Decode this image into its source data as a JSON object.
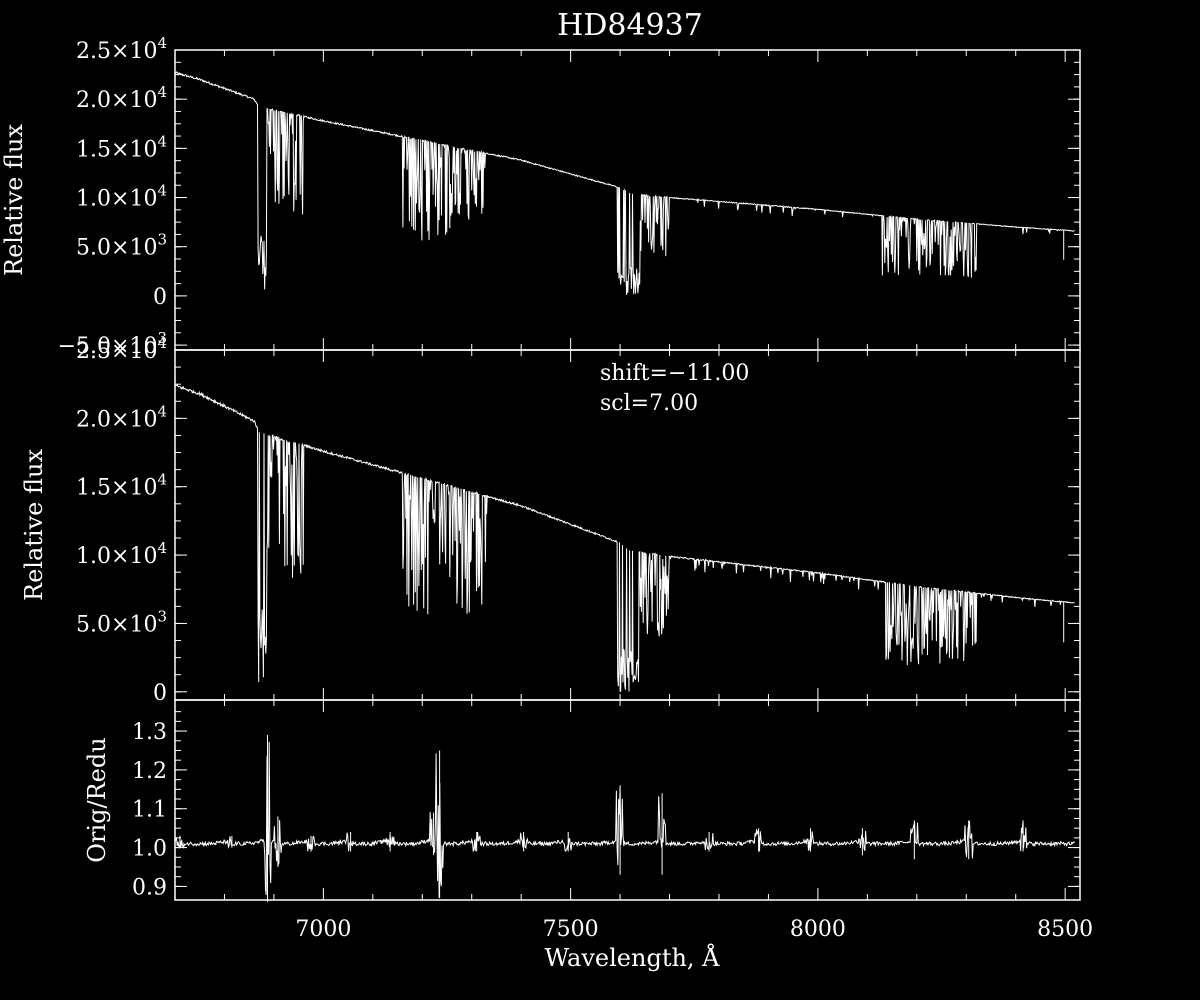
{
  "colors": {
    "background": "#000000",
    "foreground": "#ffffff"
  },
  "chart_data": [
    {
      "type": "line",
      "panel": "top",
      "title": "HD84937",
      "ylabel": "Relative flux",
      "xlim": [
        6700,
        8530
      ],
      "ylim": [
        -5500,
        25000
      ],
      "yticks": [
        {
          "value": 25000,
          "mant": "2.5",
          "exp": "4"
        },
        {
          "value": 20000,
          "mant": "2.0",
          "exp": "4"
        },
        {
          "value": 15000,
          "mant": "1.5",
          "exp": "4"
        },
        {
          "value": 10000,
          "mant": "1.0",
          "exp": "4"
        },
        {
          "value": 5000,
          "mant": "5.0",
          "exp": "3"
        },
        {
          "value": 0,
          "mant": "0",
          "exp": ""
        },
        {
          "value": -5000,
          "mant": "−5.0",
          "exp": "3"
        }
      ],
      "continuum": [
        [
          6700,
          22700
        ],
        [
          6750,
          22000
        ],
        [
          6860,
          20000
        ],
        [
          6870,
          19200
        ],
        [
          7000,
          17800
        ],
        [
          7200,
          15800
        ],
        [
          7400,
          13800
        ],
        [
          7600,
          11000
        ],
        [
          7620,
          10400
        ],
        [
          7700,
          10000
        ],
        [
          8000,
          8800
        ],
        [
          8200,
          7800
        ],
        [
          8400,
          7000
        ],
        [
          8520,
          6600
        ]
      ],
      "absorption_bands": [
        {
          "from": 6867,
          "to": 6885,
          "depth": 0.97
        },
        {
          "from": 6885,
          "to": 6960,
          "depth": 0.55
        },
        {
          "from": 7160,
          "to": 7330,
          "depth": 0.65
        },
        {
          "from": 7595,
          "to": 7640,
          "depth": 1.0
        },
        {
          "from": 7640,
          "to": 7700,
          "depth": 0.6
        },
        {
          "from": 8130,
          "to": 8320,
          "depth": 0.75
        }
      ]
    },
    {
      "type": "line",
      "panel": "middle",
      "ylabel": "Relative flux",
      "xlim": [
        6700,
        8530
      ],
      "ylim": [
        -600,
        25000
      ],
      "yticks": [
        {
          "value": 25000,
          "mant": "2.5",
          "exp": "4"
        },
        {
          "value": 20000,
          "mant": "2.0",
          "exp": "4"
        },
        {
          "value": 15000,
          "mant": "1.5",
          "exp": "4"
        },
        {
          "value": 10000,
          "mant": "1.0",
          "exp": "4"
        },
        {
          "value": 5000,
          "mant": "5.0",
          "exp": "3"
        },
        {
          "value": 0,
          "mant": "0",
          "exp": ""
        }
      ],
      "annotations": [
        "shift=−11.00",
        "scl=7.00"
      ],
      "continuum": [
        [
          6700,
          22400
        ],
        [
          6750,
          21800
        ],
        [
          6860,
          19800
        ],
        [
          6870,
          19000
        ],
        [
          7000,
          17600
        ],
        [
          7200,
          15600
        ],
        [
          7400,
          13600
        ],
        [
          7600,
          10900
        ],
        [
          7620,
          10300
        ],
        [
          7700,
          9900
        ],
        [
          8000,
          8700
        ],
        [
          8200,
          7700
        ],
        [
          8400,
          6900
        ],
        [
          8520,
          6500
        ]
      ],
      "absorption_bands": [
        {
          "from": 6867,
          "to": 6885,
          "depth": 0.97
        },
        {
          "from": 6885,
          "to": 6960,
          "depth": 0.55
        },
        {
          "from": 7160,
          "to": 7330,
          "depth": 0.65
        },
        {
          "from": 7595,
          "to": 7640,
          "depth": 1.0
        },
        {
          "from": 7640,
          "to": 7700,
          "depth": 0.6
        },
        {
          "from": 8130,
          "to": 8320,
          "depth": 0.75
        }
      ]
    },
    {
      "type": "line",
      "panel": "bottom",
      "ylabel": "Orig/Redu",
      "xlabel": "Wavelength, Å",
      "xlim": [
        6700,
        8530
      ],
      "ylim": [
        0.865,
        1.38
      ],
      "xticks": [
        {
          "value": 7000,
          "label": "7000"
        },
        {
          "value": 7500,
          "label": "7500"
        },
        {
          "value": 8000,
          "label": "8000"
        },
        {
          "value": 8500,
          "label": "8500"
        }
      ],
      "yticks": [
        {
          "value": 1.3,
          "label": "1.3"
        },
        {
          "value": 1.2,
          "label": "1.2"
        },
        {
          "value": 1.1,
          "label": "1.1"
        },
        {
          "value": 1.0,
          "label": "1.0"
        },
        {
          "value": 0.9,
          "label": "0.9"
        }
      ],
      "baseline": 1.01,
      "spikes": [
        {
          "x": 6710,
          "max": 1.03,
          "min": 1.0
        },
        {
          "x": 6815,
          "max": 1.03,
          "min": 1.0
        },
        {
          "x": 6887,
          "max": 1.29,
          "min": 0.86
        },
        {
          "x": 6908,
          "max": 1.08,
          "min": 0.95
        },
        {
          "x": 6975,
          "max": 1.03,
          "min": 0.99
        },
        {
          "x": 7055,
          "max": 1.04,
          "min": 0.99
        },
        {
          "x": 7135,
          "max": 1.04,
          "min": 0.99
        },
        {
          "x": 7223,
          "max": 1.09,
          "min": 0.98
        },
        {
          "x": 7235,
          "max": 1.25,
          "min": 0.87
        },
        {
          "x": 7310,
          "max": 1.04,
          "min": 0.99
        },
        {
          "x": 7405,
          "max": 1.04,
          "min": 0.99
        },
        {
          "x": 7495,
          "max": 1.04,
          "min": 0.99
        },
        {
          "x": 7600,
          "max": 1.16,
          "min": 0.93
        },
        {
          "x": 7685,
          "max": 1.14,
          "min": 0.93
        },
        {
          "x": 7780,
          "max": 1.04,
          "min": 0.99
        },
        {
          "x": 7880,
          "max": 1.05,
          "min": 0.99
        },
        {
          "x": 7985,
          "max": 1.05,
          "min": 0.99
        },
        {
          "x": 8090,
          "max": 1.05,
          "min": 0.98
        },
        {
          "x": 8195,
          "max": 1.07,
          "min": 0.97
        },
        {
          "x": 8305,
          "max": 1.07,
          "min": 0.97
        },
        {
          "x": 8415,
          "max": 1.07,
          "min": 0.99
        }
      ]
    }
  ]
}
